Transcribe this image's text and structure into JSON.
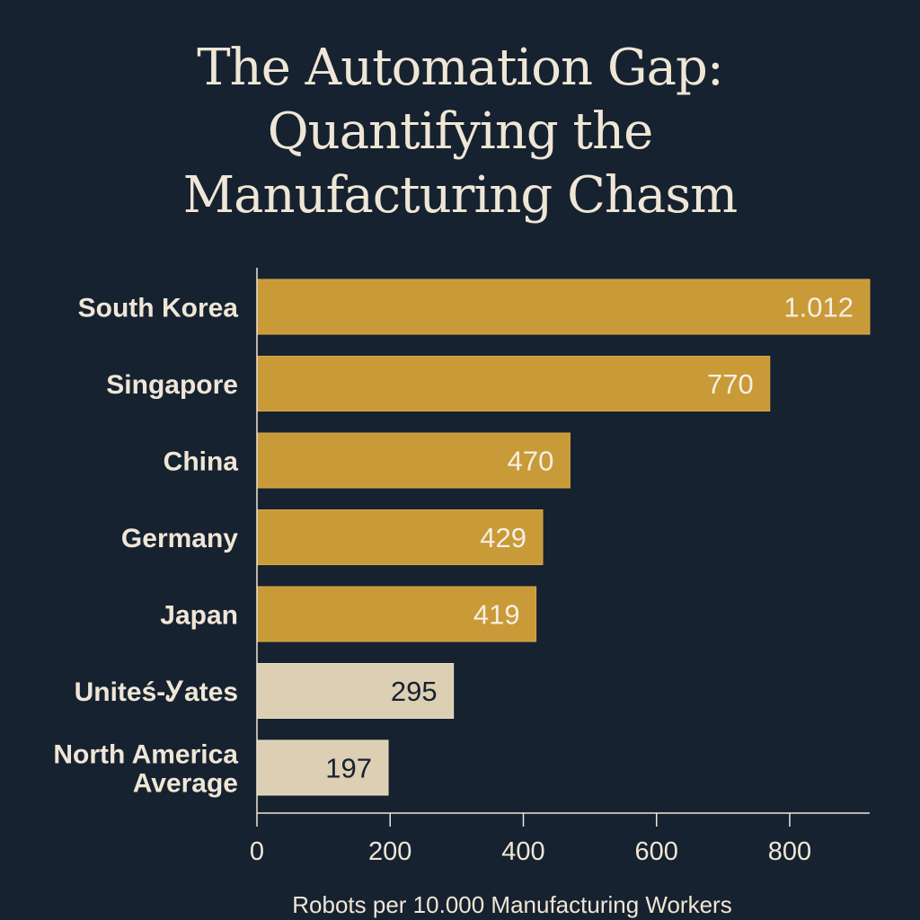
{
  "chart_data": {
    "type": "bar",
    "orientation": "horizontal",
    "title_lines": [
      "The Automation Gap:",
      "Quantifying the",
      "Manufacturing Chasm"
    ],
    "categories": [
      {
        "lines": [
          "South Korea"
        ]
      },
      {
        "lines": [
          "Singapore"
        ]
      },
      {
        "lines": [
          "China"
        ]
      },
      {
        "lines": [
          "Germany"
        ]
      },
      {
        "lines": [
          "Japan"
        ]
      },
      {
        "lines": [
          "Uniteś-Ꭹates"
        ]
      },
      {
        "lines": [
          "North America",
          "Average"
        ]
      }
    ],
    "values": [
      1012,
      770,
      470,
      429,
      419,
      295,
      197
    ],
    "value_labels": [
      "1.012",
      "770",
      "470",
      "429",
      "419",
      "295",
      "197"
    ],
    "bar_groups": [
      "highlight",
      "highlight",
      "highlight",
      "highlight",
      "highlight",
      "muted",
      "muted"
    ],
    "colors": {
      "highlight": "#c99a38",
      "muted": "#dccfb4",
      "highlight_text": "#f6efe2",
      "muted_text": "#172230",
      "axis": "#efe6d6",
      "background": "#172230"
    },
    "xlabel": "Robots per 10.000 Manufacturing Workers",
    "ylabel": "",
    "xticks": [
      0,
      200,
      400,
      600,
      800
    ],
    "xtick_labels": [
      "0",
      "200",
      "400",
      "600",
      "800"
    ],
    "xlim": [
      0,
      920
    ],
    "grid": false,
    "legend": "none"
  }
}
